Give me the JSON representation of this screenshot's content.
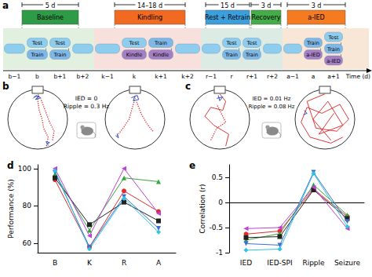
{
  "diagram": {
    "a": {
      "label": "a",
      "phases": [
        {
          "name": "Baseline",
          "duration": "5 d",
          "color": "#2e9b46"
        },
        {
          "name": "Kindling",
          "duration": "14–18 d",
          "color": "#f26a21"
        },
        {
          "name": "Rest + Retrain",
          "duration": "15 d",
          "color": "#3b9fdc"
        },
        {
          "name": "Recovery",
          "duration": "3 d",
          "color": "#45ad48"
        },
        {
          "name": "a-IED",
          "duration": "3 d",
          "color": "#f47b20"
        }
      ],
      "sections": [
        {
          "color": "#e2f0df",
          "days": [
            {
              "day": "b−1",
              "blobs": [
                {
                  "color": "#8fcdee"
                }
              ]
            },
            {
              "day": "b",
              "blobs": [
                {
                  "text": "Test",
                  "color": "#8fcdee"
                },
                {
                  "text": "Train",
                  "color": "#7fb8e6"
                }
              ]
            },
            {
              "day": "b+1",
              "blobs": [
                {
                  "text": "Test",
                  "color": "#8fcdee"
                },
                {
                  "text": "Train",
                  "color": "#7fb8e6"
                }
              ]
            },
            {
              "day": "b+2",
              "blobs": [
                {
                  "color": "#8fcdee"
                }
              ]
            }
          ]
        },
        {
          "color": "#f8e0dc",
          "days": [
            {
              "day": "k−1",
              "blobs": [
                {
                  "color": "#8fcdee"
                }
              ]
            },
            {
              "day": "k",
              "blobs": [
                {
                  "text": "Test",
                  "color": "#8fcdee"
                },
                {
                  "text": "Kindle",
                  "color": "#a57fc4"
                }
              ]
            },
            {
              "day": "k+1",
              "blobs": [
                {
                  "text": "Train",
                  "color": "#7fb8e6"
                },
                {
                  "text": "Kindle",
                  "color": "#a57fc4"
                }
              ]
            },
            {
              "day": "k+2",
              "blobs": [
                {
                  "color": "#8fcdee"
                }
              ]
            }
          ]
        },
        {
          "color": "#dcebe4",
          "days": [
            {
              "day": "r−1",
              "blobs": [
                {
                  "color": "#8fcdee"
                }
              ]
            },
            {
              "day": "r",
              "blobs": [
                {
                  "text": "Test",
                  "color": "#8fcdee"
                },
                {
                  "text": "Train",
                  "color": "#7fb8e6"
                }
              ]
            },
            {
              "day": "r+1",
              "blobs": [
                {
                  "text": "Test",
                  "color": "#8fcdee"
                },
                {
                  "text": "Train",
                  "color": "#7fb8e6"
                }
              ]
            },
            {
              "day": "r+2",
              "blobs": [
                {
                  "color": "#8fcdee"
                }
              ]
            }
          ]
        },
        {
          "color": "#f8e6d6",
          "days": [
            {
              "day": "a−1",
              "blobs": [
                {
                  "color": "#8fcdee"
                }
              ]
            },
            {
              "day": "a",
              "blobs": [
                {
                  "text": "Train",
                  "color": "#7fb8e6"
                },
                {
                  "text": "a-IED",
                  "color": "#a57fc4"
                }
              ]
            },
            {
              "day": "a+1",
              "blobs": [
                {
                  "text": "Test",
                  "color": "#8fcdee"
                },
                {
                  "text": "Train",
                  "color": "#7fb8e6"
                },
                {
                  "text": "a-IED",
                  "color": "#a57fc4"
                }
              ]
            }
          ]
        }
      ],
      "axis_label": "Time (d)"
    },
    "b": {
      "label": "b",
      "texts": [
        "IED = 0",
        "Ripple = 0.3 Hz"
      ]
    },
    "c": {
      "label": "c",
      "texts": [
        "IED = 0.01 Hz",
        "Ripple = 0.08 Hz"
      ]
    }
  },
  "chart_data": [
    {
      "type": "line",
      "title": "d",
      "categories": [
        "B",
        "K",
        "R",
        "A"
      ],
      "ylabel": "Performance (%)",
      "ylim": [
        55,
        102
      ],
      "yticks": [
        60,
        80,
        100
      ],
      "grid": false,
      "series": [
        {
          "color": "#e02d2d",
          "marker": "circle",
          "values": [
            94,
            58,
            88,
            77
          ]
        },
        {
          "color": "#33a63a",
          "marker": "triangle",
          "values": [
            97,
            67,
            95,
            93
          ]
        },
        {
          "color": "#222222",
          "marker": "square",
          "values": [
            95,
            70,
            82,
            72
          ]
        },
        {
          "color": "#c03fd8",
          "marker": "triangle_left",
          "values": [
            100,
            64,
            100,
            76
          ]
        },
        {
          "color": "#3b6fd6",
          "marker": "triangle_down",
          "values": [
            98,
            58,
            85,
            68
          ]
        },
        {
          "color": "#2fc4dc",
          "marker": "diamond",
          "values": [
            99,
            57,
            84,
            66
          ]
        }
      ]
    },
    {
      "type": "line",
      "title": "e",
      "categories": [
        "IED",
        "IED-SPI",
        "Ripple",
        "Seizure"
      ],
      "ylabel": "Correlation (r)",
      "ylim": [
        -1,
        0.75
      ],
      "yticks": [
        -1,
        -0.5,
        0,
        0.5
      ],
      "grid": false,
      "series": [
        {
          "color": "#e02d2d",
          "marker": "circle",
          "values": [
            -0.63,
            -0.57,
            0.27,
            -0.28
          ]
        },
        {
          "color": "#33a63a",
          "marker": "triangle",
          "values": [
            -0.75,
            -0.62,
            0.35,
            -0.25
          ]
        },
        {
          "color": "#222222",
          "marker": "square",
          "values": [
            -0.7,
            -0.68,
            0.25,
            -0.32
          ]
        },
        {
          "color": "#c03fd8",
          "marker": "triangle_left",
          "values": [
            -0.52,
            -0.5,
            0.3,
            -0.52
          ]
        },
        {
          "color": "#3b6fd6",
          "marker": "triangle_down",
          "values": [
            -0.82,
            -0.85,
            0.6,
            -0.38
          ]
        },
        {
          "color": "#2fc4dc",
          "marker": "diamond",
          "values": [
            -0.95,
            -0.93,
            0.58,
            -0.48
          ]
        }
      ]
    }
  ]
}
